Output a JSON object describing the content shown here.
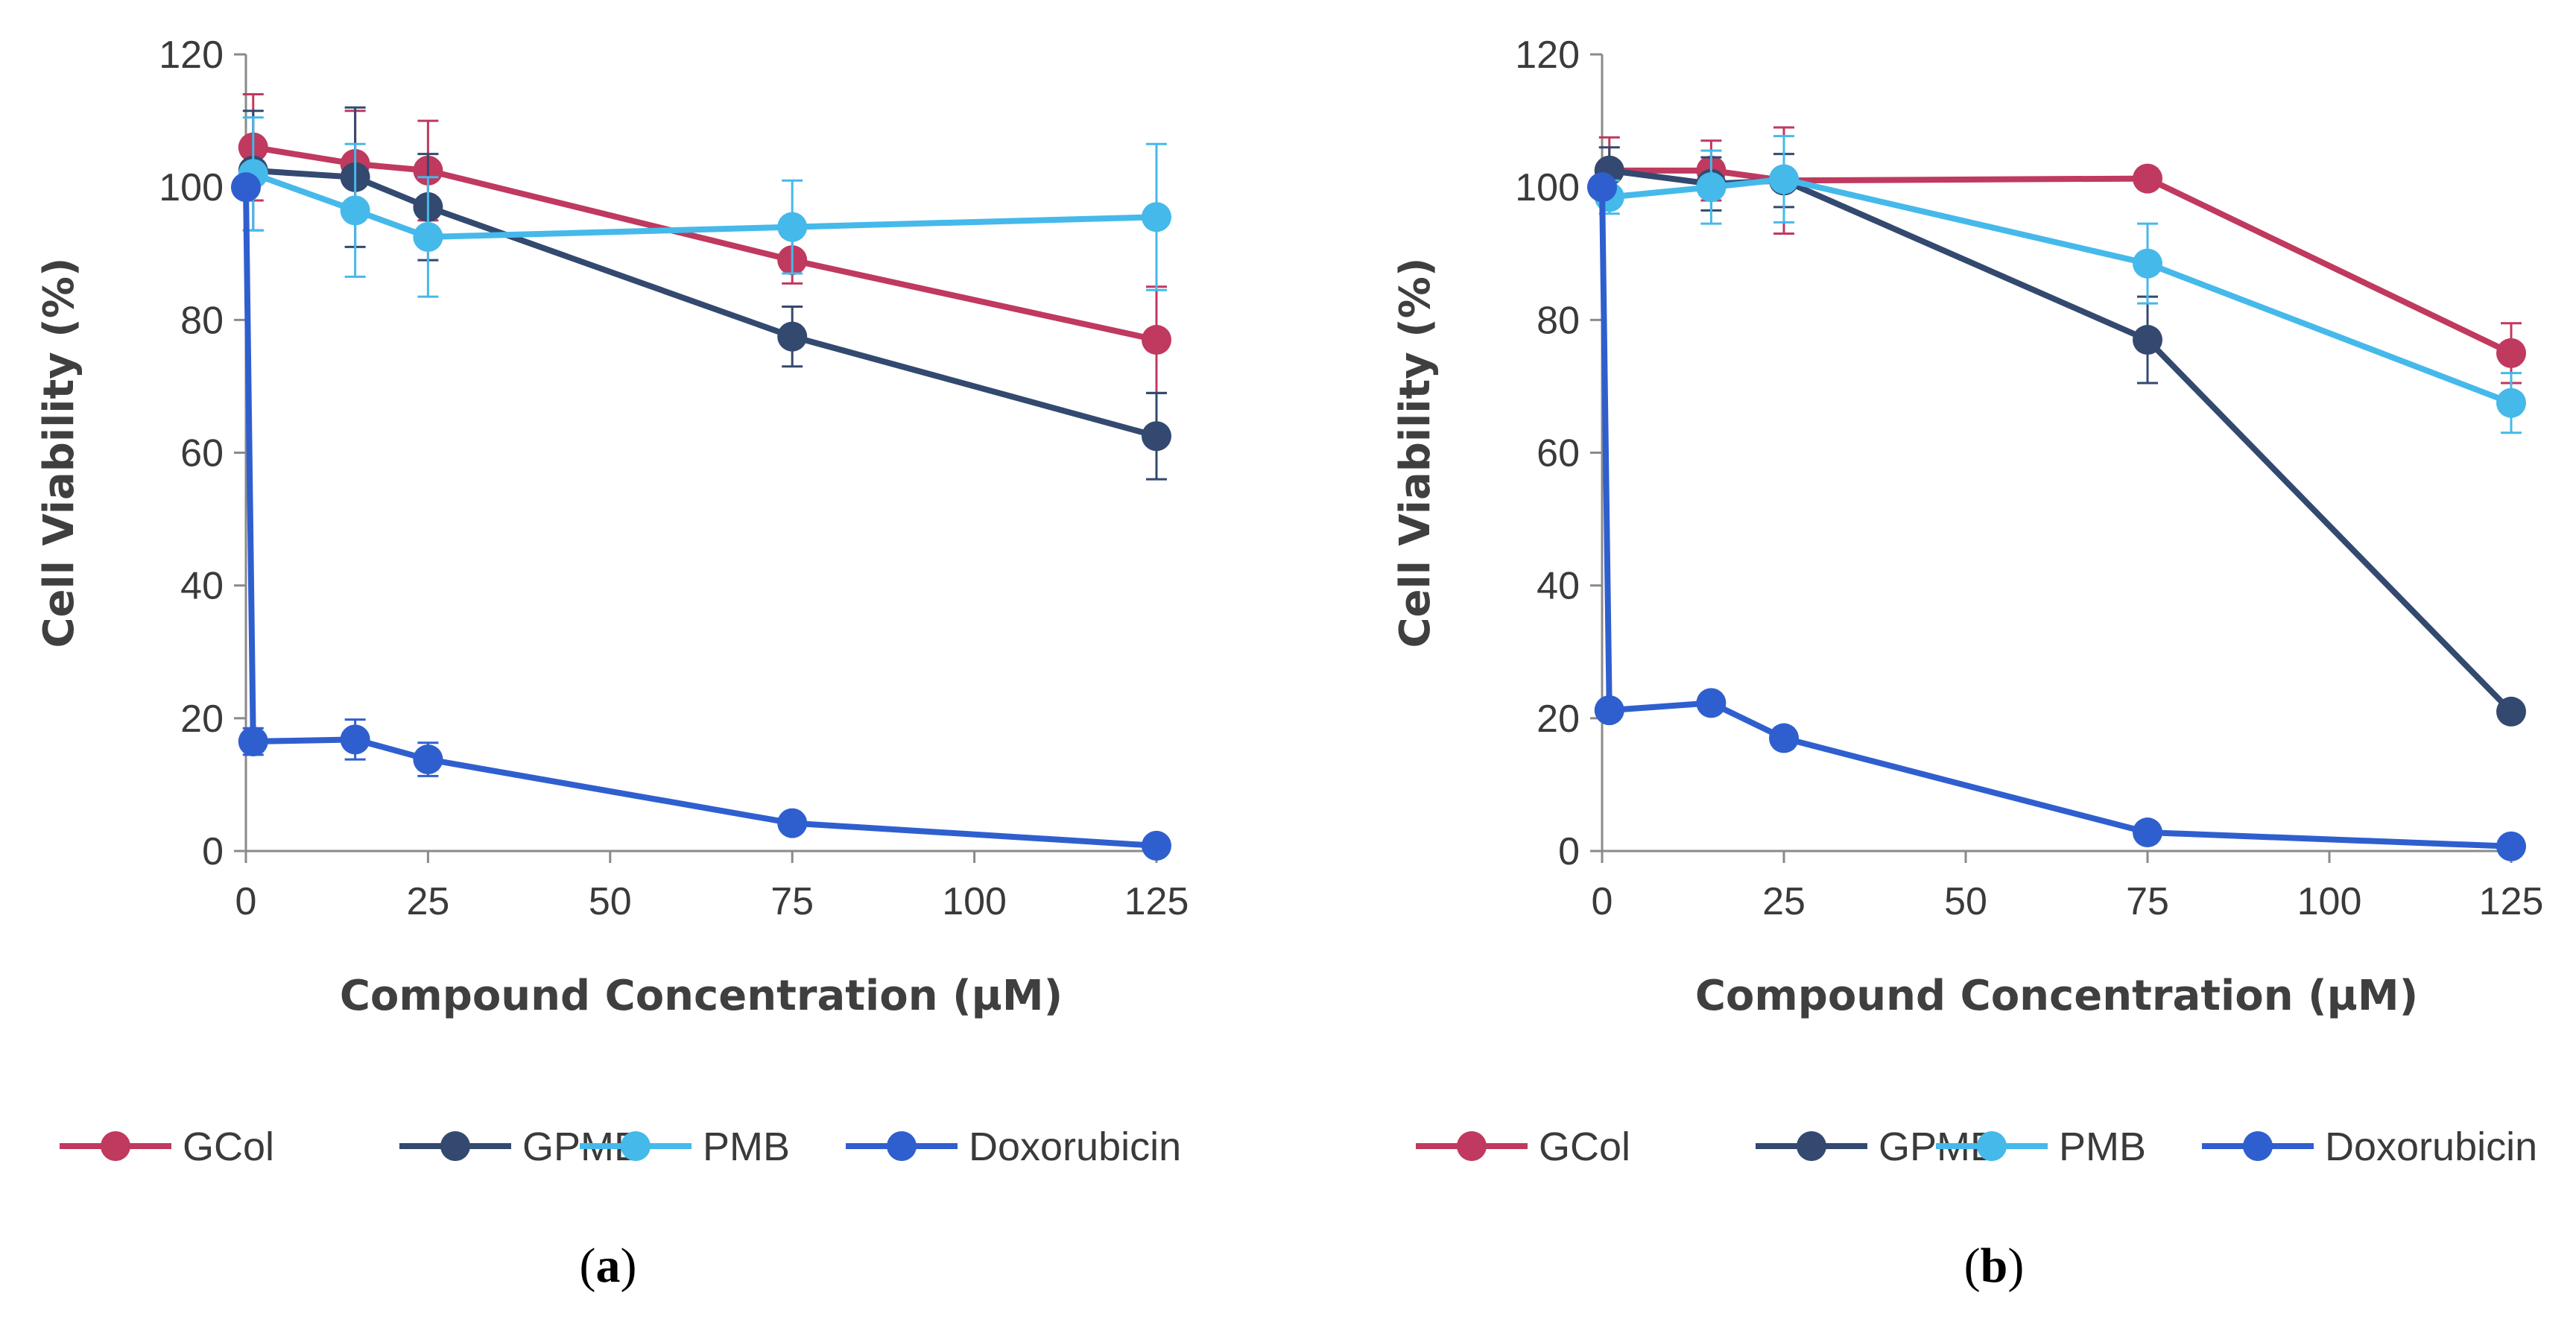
{
  "chart_data": [
    {
      "type": "line",
      "panel_label": "a",
      "title": "",
      "xlabel": "Compound Concentration (µM)",
      "ylabel": "Cell Viability (%)",
      "xlim": [
        0,
        125
      ],
      "ylim": [
        0,
        120
      ],
      "xticks": [
        0,
        25,
        50,
        75,
        100,
        125
      ],
      "yticks": [
        0,
        20,
        40,
        60,
        80,
        100,
        120
      ],
      "grid": false,
      "legend_position": "bottom",
      "series": [
        {
          "name": "GCol",
          "color": "#c0395e",
          "x": [
            1,
            15,
            25,
            75,
            125
          ],
          "y": [
            106,
            103.5,
            102.5,
            89,
            77
          ],
          "err": [
            8,
            8,
            7.5,
            3.5,
            8
          ]
        },
        {
          "name": "GPMB",
          "color": "#33496f",
          "x": [
            1,
            15,
            25,
            75,
            125
          ],
          "y": [
            102.5,
            101.5,
            97,
            77.5,
            62.5
          ],
          "err": [
            9,
            10.5,
            8,
            4.5,
            6.5
          ]
        },
        {
          "name": "PMB",
          "color": "#45b9ea",
          "x": [
            1,
            15,
            25,
            75,
            125
          ],
          "y": [
            102,
            96.5,
            92.5,
            94,
            95.5
          ],
          "err": [
            8.5,
            10,
            9,
            7,
            11
          ]
        },
        {
          "name": "Doxorubicin",
          "color": "#2f5fcf",
          "x": [
            0,
            1,
            15,
            25,
            75,
            125
          ],
          "y": [
            100,
            16.5,
            16.8,
            13.8,
            4.2,
            0.8
          ],
          "err": [
            0,
            2,
            3,
            2.5,
            1,
            1
          ]
        }
      ]
    },
    {
      "type": "line",
      "panel_label": "b",
      "title": "",
      "xlabel": "Compound Concentration (µM)",
      "ylabel": "Cell Viability (%)",
      "xlim": [
        0,
        125
      ],
      "ylim": [
        0,
        120
      ],
      "xticks": [
        0,
        25,
        50,
        75,
        100,
        125
      ],
      "yticks": [
        0,
        20,
        40,
        60,
        80,
        100,
        120
      ],
      "grid": false,
      "legend_position": "bottom",
      "series": [
        {
          "name": "GCol",
          "color": "#c0395e",
          "x": [
            1,
            15,
            25,
            75,
            125
          ],
          "y": [
            102.5,
            102.5,
            101,
            101.3,
            75
          ],
          "err": [
            5,
            4.5,
            8,
            1.5,
            4.5
          ]
        },
        {
          "name": "GPMB",
          "color": "#33496f",
          "x": [
            1,
            15,
            25,
            75,
            125
          ],
          "y": [
            102.5,
            100.5,
            101,
            77,
            21
          ],
          "err": [
            3.5,
            4,
            4,
            6.5,
            1
          ]
        },
        {
          "name": "PMB",
          "color": "#45b9ea",
          "x": [
            1,
            15,
            25,
            75,
            125
          ],
          "y": [
            98.5,
            100,
            101.2,
            88.5,
            67.5
          ],
          "err": [
            2.5,
            5.5,
            6.5,
            6,
            4.5
          ]
        },
        {
          "name": "Doxorubicin",
          "color": "#2f5fcf",
          "x": [
            0,
            1,
            15,
            25,
            75,
            125
          ],
          "y": [
            100,
            21.2,
            22.3,
            17,
            2.8,
            0.7
          ],
          "err": [
            0,
            1,
            1,
            1.5,
            1,
            0.5
          ]
        }
      ]
    }
  ]
}
